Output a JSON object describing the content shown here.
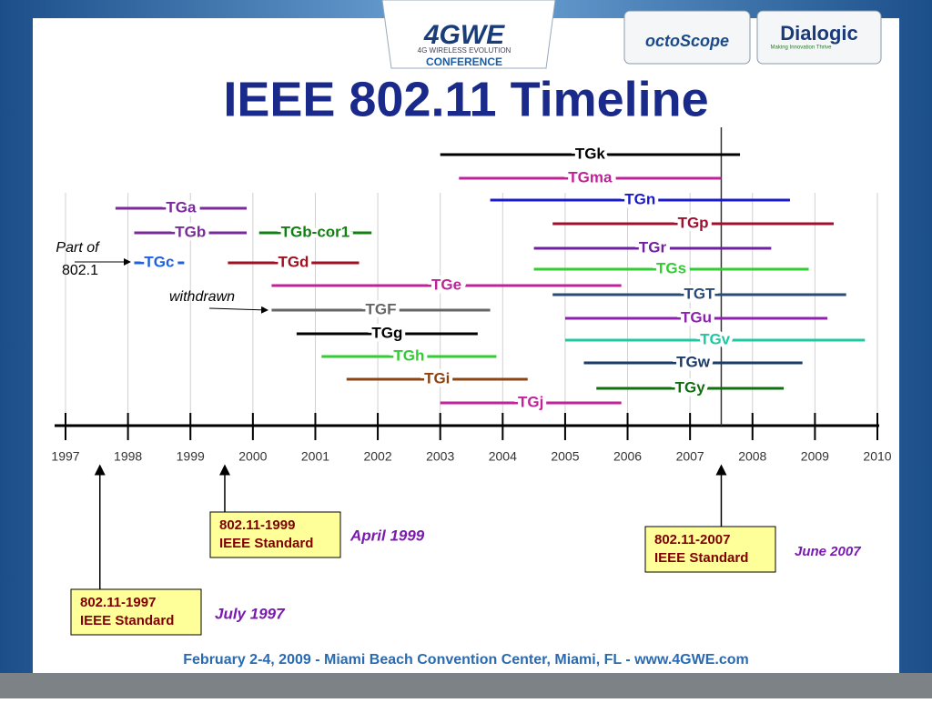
{
  "header": {
    "logo": "4GWE",
    "logo_subtitle": "4G WIRELESS EVOLUTION",
    "logo_caption": "CONFERENCE",
    "sponsors": [
      "octoScope",
      "Dialogic"
    ],
    "sponsor_tagline": "Making Innovation Thrive"
  },
  "chart_data": {
    "type": "timeline",
    "title": "IEEE 802.11 Timeline",
    "xlim": [
      1997,
      2010
    ],
    "xticks": [
      1997,
      1998,
      1999,
      2000,
      2001,
      2002,
      2003,
      2004,
      2005,
      2006,
      2007,
      2008,
      2009,
      2010
    ],
    "grid": true,
    "marker": 2007.5,
    "series": [
      {
        "name": "TGk",
        "color": "#000000",
        "values": [
          2003.0,
          2007.8
        ]
      },
      {
        "name": "TGma",
        "color": "#c0229a",
        "values": [
          2003.3,
          2007.5
        ]
      },
      {
        "name": "TGn",
        "color": "#1a1acc",
        "values": [
          2003.8,
          2008.6
        ]
      },
      {
        "name": "TGp",
        "color": "#a0102e",
        "values": [
          2004.8,
          2009.3
        ]
      },
      {
        "name": "TGr",
        "color": "#7020a0",
        "values": [
          2004.5,
          2008.3
        ]
      },
      {
        "name": "TGs",
        "color": "#33cc33",
        "values": [
          2004.5,
          2008.9
        ]
      },
      {
        "name": "TGT",
        "color": "#2a4a7a",
        "values": [
          2004.8,
          2009.5
        ]
      },
      {
        "name": "TGu",
        "color": "#9020b0",
        "values": [
          2005.0,
          2009.2
        ]
      },
      {
        "name": "TGv",
        "color": "#20c8a0",
        "values": [
          2005.0,
          2009.8
        ]
      },
      {
        "name": "TGw",
        "color": "#1a3a6a",
        "values": [
          2005.3,
          2008.8
        ]
      },
      {
        "name": "TGy",
        "color": "#107010",
        "values": [
          2005.5,
          2008.5
        ]
      },
      {
        "name": "TGa",
        "color": "#7a2a9a",
        "values": [
          1997.8,
          1999.9
        ]
      },
      {
        "name": "TGb",
        "color": "#7a2a9a",
        "values": [
          1998.1,
          1999.9
        ]
      },
      {
        "name": "TGb-cor1",
        "color": "#108010",
        "values": [
          2000.1,
          2001.9
        ]
      },
      {
        "name": "TGc",
        "color": "#2060e0",
        "values": [
          1998.1,
          1998.9
        ]
      },
      {
        "name": "TGd",
        "color": "#a01020",
        "values": [
          1999.6,
          2001.7
        ]
      },
      {
        "name": "TGe",
        "color": "#c0229a",
        "values": [
          2000.3,
          2005.9
        ]
      },
      {
        "name": "TGF",
        "color": "#666666",
        "values": [
          2000.3,
          2003.8
        ]
      },
      {
        "name": "TGg",
        "color": "#000000",
        "values": [
          2000.7,
          2003.6
        ]
      },
      {
        "name": "TGh",
        "color": "#33cc33",
        "values": [
          2001.1,
          2003.9
        ]
      },
      {
        "name": "TGi",
        "color": "#8b4513",
        "values": [
          2001.5,
          2004.4
        ]
      },
      {
        "name": "TGj",
        "color": "#c0229a",
        "values": [
          2003.0,
          2005.9
        ]
      }
    ],
    "annotations": [
      {
        "lines": [
          "Part of",
          "802.1"
        ]
      },
      {
        "lines": [
          "withdrawn"
        ]
      }
    ],
    "standards": [
      {
        "lines": [
          "802.11-1997",
          "IEEE Standard"
        ],
        "date": "July 1997",
        "x": 1997.55
      },
      {
        "lines": [
          "802.11-1999",
          "IEEE Standard"
        ],
        "date": "April 1999",
        "x": 1999.55
      },
      {
        "lines": [
          "802.11-2007",
          "IEEE Standard"
        ],
        "date": "June 2007",
        "x": 2007.5
      }
    ]
  },
  "footer": "February 2-4, 2009  -  Miami Beach Convention Center, Miami, FL  -  www.4GWE.com"
}
